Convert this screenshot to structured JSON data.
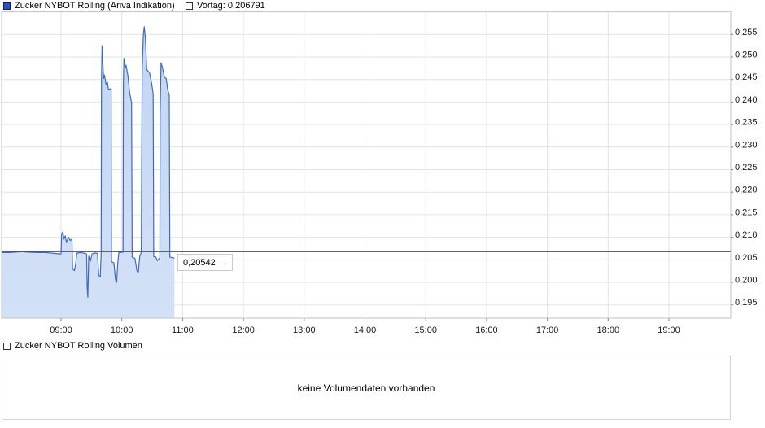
{
  "legend_top": {
    "series_label": "Zucker NYBOT Rolling (Ariva Indikation)",
    "vortag_label": "Vortag: 0,206791"
  },
  "current_value": {
    "text": "0,20542",
    "arrow_icon": "→"
  },
  "volume_section": {
    "legend_label": "Zucker NYBOT Rolling Volumen",
    "message": "keine Volumendaten vorhanden"
  },
  "colors": {
    "series_line": "#3e6bbf",
    "area_fill_top": "#c3d5f1",
    "area_fill_bottom": "#d3e1f7",
    "vortag_line": "#4d4d4d",
    "grid": "#e3e3e3",
    "plot_border": "#c2c2c2",
    "tick": "#8a8a8a",
    "legend_swatch_fill": "#2b51b5",
    "legend_swatch_border": "#0d1f6e",
    "empty_swatch_border": "#333333",
    "label_text": "#1a1a1a"
  },
  "chart_data": {
    "type": "area",
    "title": "Zucker NYBOT Rolling (Ariva Indikation)",
    "vortag_value": 0.206791,
    "last_value": 0.20542,
    "ylim": [
      0.192,
      0.26
    ],
    "xlim_hours": [
      8.02,
      20.02
    ],
    "grid": "on",
    "legend_position": "top",
    "y_ticks": {
      "values": [
        0.255,
        0.25,
        0.245,
        0.24,
        0.235,
        0.23,
        0.225,
        0.22,
        0.215,
        0.21,
        0.205,
        0.2,
        0.195
      ],
      "labels": [
        "0,255",
        "0,250",
        "0,245",
        "0,240",
        "0,235",
        "0,230",
        "0,225",
        "0,220",
        "0,215",
        "0,210",
        "0,205",
        "0,200",
        "0,195"
      ]
    },
    "x_ticks": {
      "hours": [
        9,
        10,
        11,
        12,
        13,
        14,
        15,
        16,
        17,
        18,
        19
      ],
      "labels": [
        "09:00",
        "10:00",
        "11:00",
        "12:00",
        "13:00",
        "14:00",
        "15:00",
        "16:00",
        "17:00",
        "18:00",
        "19:00"
      ]
    },
    "series": [
      {
        "name": "Zucker NYBOT Rolling (Ariva Indikation)",
        "points": [
          [
            8.02,
            0.2066
          ],
          [
            8.15,
            0.2066
          ],
          [
            8.25,
            0.2067
          ],
          [
            8.35,
            0.2068
          ],
          [
            8.45,
            0.2067
          ],
          [
            8.6,
            0.2066
          ],
          [
            8.75,
            0.2066
          ],
          [
            8.9,
            0.2064
          ],
          [
            8.99,
            0.2063
          ],
          [
            9.0,
            0.2063
          ],
          [
            9.01,
            0.2108
          ],
          [
            9.03,
            0.2112
          ],
          [
            9.05,
            0.2096
          ],
          [
            9.07,
            0.2103
          ],
          [
            9.09,
            0.2088
          ],
          [
            9.12,
            0.21
          ],
          [
            9.15,
            0.2093
          ],
          [
            9.18,
            0.2096
          ],
          [
            9.19,
            0.203
          ],
          [
            9.22,
            0.2026
          ],
          [
            9.24,
            0.204
          ],
          [
            9.26,
            0.2065
          ],
          [
            9.33,
            0.2066
          ],
          [
            9.4,
            0.2064
          ],
          [
            9.42,
            0.2063
          ],
          [
            9.43,
            0.199
          ],
          [
            9.44,
            0.1967
          ],
          [
            9.455,
            0.2058
          ],
          [
            9.48,
            0.2046
          ],
          [
            9.51,
            0.2063
          ],
          [
            9.56,
            0.2065
          ],
          [
            9.6,
            0.2064
          ],
          [
            9.62,
            0.2016
          ],
          [
            9.645,
            0.2012
          ],
          [
            9.66,
            0.2064
          ],
          [
            9.665,
            0.245
          ],
          [
            9.675,
            0.2525
          ],
          [
            9.7,
            0.2452
          ],
          [
            9.715,
            0.246
          ],
          [
            9.74,
            0.2438
          ],
          [
            9.76,
            0.2445
          ],
          [
            9.78,
            0.2428
          ],
          [
            9.825,
            0.243
          ],
          [
            9.83,
            0.2046
          ],
          [
            9.87,
            0.2043
          ],
          [
            9.895,
            0.2006
          ],
          [
            9.915,
            0.2
          ],
          [
            9.93,
            0.2038
          ],
          [
            9.95,
            0.2066
          ],
          [
            10.02,
            0.2067
          ],
          [
            10.025,
            0.244
          ],
          [
            10.035,
            0.2497
          ],
          [
            10.055,
            0.2475
          ],
          [
            10.07,
            0.2482
          ],
          [
            10.1,
            0.2458
          ],
          [
            10.13,
            0.242
          ],
          [
            10.16,
            0.2398
          ],
          [
            10.17,
            0.2056
          ],
          [
            10.215,
            0.2053
          ],
          [
            10.25,
            0.2025
          ],
          [
            10.27,
            0.2022
          ],
          [
            10.295,
            0.2058
          ],
          [
            10.32,
            0.2066
          ],
          [
            10.335,
            0.2475
          ],
          [
            10.355,
            0.2552
          ],
          [
            10.37,
            0.2567
          ],
          [
            10.39,
            0.2538
          ],
          [
            10.41,
            0.2472
          ],
          [
            10.455,
            0.2465
          ],
          [
            10.49,
            0.2442
          ],
          [
            10.515,
            0.2418
          ],
          [
            10.525,
            0.2057
          ],
          [
            10.56,
            0.2056
          ],
          [
            10.585,
            0.2048
          ],
          [
            10.61,
            0.2052
          ],
          [
            10.625,
            0.2054
          ],
          [
            10.63,
            0.238
          ],
          [
            10.645,
            0.2487
          ],
          [
            10.665,
            0.2478
          ],
          [
            10.7,
            0.2455
          ],
          [
            10.73,
            0.2452
          ],
          [
            10.755,
            0.2428
          ],
          [
            10.78,
            0.2415
          ],
          [
            10.79,
            0.2056
          ],
          [
            10.82,
            0.2055
          ],
          [
            10.845,
            0.2054
          ],
          [
            10.865,
            0.20542
          ]
        ]
      }
    ]
  }
}
